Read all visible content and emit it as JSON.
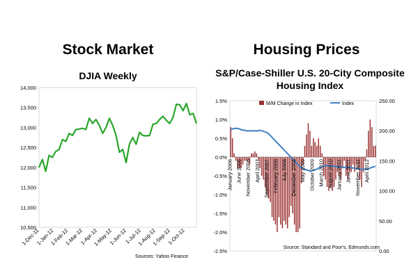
{
  "titles": {
    "left": "Stock Market",
    "right": "Housing Prices"
  },
  "chart_data": [
    {
      "type": "line",
      "title": "DJIA Weekly",
      "ylim": [
        10500,
        14000
      ],
      "ytick_labels": [
        "14,000",
        "13,500",
        "13,000",
        "12,500",
        "12,000",
        "11,500",
        "11,000",
        "10,500"
      ],
      "ytick_values": [
        14000,
        13500,
        13000,
        12500,
        12000,
        11500,
        11000,
        10500
      ],
      "xtick_labels": [
        "1-Dec-11",
        "1-Jan-12",
        "1-Feb-12",
        "1-Mar-12",
        "1-Apr-12",
        "1-May-12",
        "1-Jun-12",
        "1-Jul-12",
        "1-Aug-12",
        "1-Sep-12",
        "1-Oct-12"
      ],
      "series": [
        {
          "name": "DJIA",
          "color": "#2aa52a",
          "values": [
            12000,
            12200,
            11900,
            12300,
            12250,
            12400,
            12450,
            12700,
            12650,
            12850,
            12800,
            12950,
            12960,
            12980,
            12950,
            13230,
            13100,
            13200,
            13050,
            12850,
            13000,
            13230,
            13050,
            12800,
            12380,
            12450,
            12120,
            12580,
            12750,
            12580,
            12880,
            12800,
            12790,
            12800,
            13080,
            13100,
            13200,
            13280,
            13180,
            13100,
            13250,
            13580,
            13570,
            13420,
            13600,
            13320,
            13350,
            13100
          ]
        }
      ],
      "source": "Sources: Yahoo Finance"
    },
    {
      "type": "bar+line",
      "title": "S&P/Case-Shiller U.S. 20-City Composite Housing Index",
      "left_axis": {
        "ylim": [
          -2.5,
          1.5
        ],
        "tick_labels": [
          "1.5%",
          "1.0%",
          "0.5%",
          "0.0%",
          "-0.5%",
          "-1.0%",
          "-1.5%",
          "-2.0%",
          "-2.5%"
        ],
        "tick_values": [
          1.5,
          1.0,
          0.5,
          0.0,
          -0.5,
          -1.0,
          -1.5,
          -2.0,
          -2.5
        ]
      },
      "right_axis": {
        "ylim": [
          0,
          250
        ],
        "tick_labels": [
          "250.00",
          "200.00",
          "150.00",
          "100.00",
          "50.00",
          "0.00"
        ],
        "tick_values": [
          250,
          200,
          150,
          100,
          50,
          0
        ]
      },
      "xtick_labels": [
        "January 2006",
        "June 2006",
        "November 2006",
        "April 2007",
        "September 2007",
        "February 2008",
        "July 2008",
        "December 2008",
        "May 2009",
        "October 2009",
        "March 2010",
        "August 2010",
        "January 2011",
        "June 2011",
        "November 2011",
        "April 2012"
      ],
      "legend": [
        "M/M Change in Index",
        "Index"
      ],
      "colors": {
        "bars": "#9b2f2f",
        "index": "#3f7fc4"
      },
      "series": [
        {
          "name": "M/M Change in Index",
          "axis": "left",
          "values": [
            0.8,
            0.5,
            0.1,
            -0.1,
            -0.3,
            -0.3,
            -0.3,
            -0.2,
            -0.1,
            -0.1,
            -0.1,
            -0.2,
            0.1,
            0.1,
            0.15,
            0.1,
            -0.1,
            -0.3,
            -0.5,
            -0.6,
            -0.8,
            -1.0,
            -1.1,
            -1.2,
            -1.6,
            -1.7,
            -1.8,
            -2.0,
            -1.6,
            -1.8,
            -1.9,
            -1.7,
            -1.8,
            -1.9,
            -1.6,
            -1.3,
            -1.5,
            -1.8,
            -2.0,
            -2.0,
            -1.9,
            -0.7,
            -0.2,
            0.3,
            0.6,
            0.9,
            0.7,
            0.3,
            0.5,
            0.4,
            0.3,
            0.5,
            0.3,
            0.1,
            -0.5,
            -0.6,
            -0.8,
            -0.9,
            -0.8,
            -0.9,
            -0.8,
            -0.6,
            -0.4,
            -0.5,
            -0.6,
            -0.3,
            -0.1,
            -0.5,
            -0.6,
            -0.4,
            -0.4,
            -0.2,
            -0.4,
            -0.2,
            -0.3,
            -0.6,
            -0.8,
            -0.4,
            -0.1,
            0.2,
            0.7,
            1.0,
            0.8,
            0.3,
            0.3
          ]
        },
        {
          "name": "Index",
          "axis": "right",
          "values": [
            202,
            203,
            204,
            204,
            204,
            203,
            202,
            201,
            201,
            200,
            200,
            200,
            200,
            200,
            200,
            200,
            200,
            201,
            200,
            199,
            198,
            197,
            195,
            192,
            189,
            186,
            183,
            180,
            177,
            174,
            171,
            168,
            165,
            162,
            159,
            156,
            153,
            150,
            147,
            144,
            141,
            139,
            137,
            136,
            135,
            134,
            133,
            133,
            134,
            135,
            136,
            138,
            139,
            140,
            141,
            142,
            142,
            142,
            141,
            141,
            141,
            141,
            140,
            140,
            140,
            139,
            139,
            139,
            139,
            139,
            139,
            138,
            138,
            137,
            137,
            136,
            136,
            136,
            136,
            136,
            137,
            138,
            139,
            140,
            141
          ]
        }
      ],
      "source": "Source: Standard and Poor's, Edmunds.com"
    }
  ]
}
